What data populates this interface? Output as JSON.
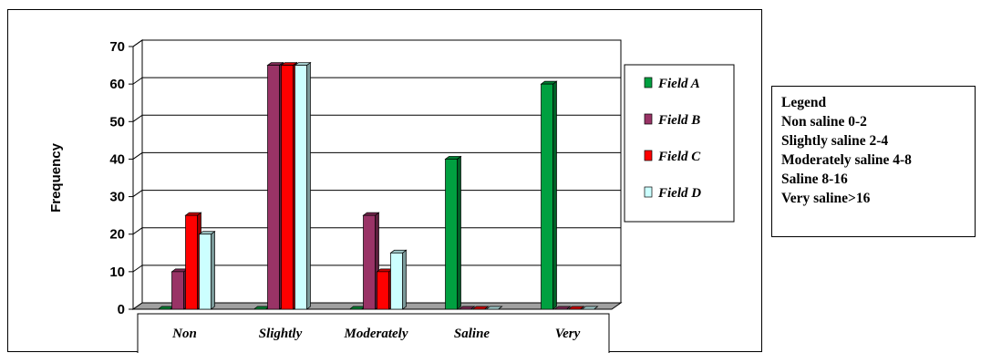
{
  "chart_data": {
    "type": "bar",
    "title": "",
    "xlabel": "",
    "ylabel": "Frequency",
    "ylim": [
      0,
      70
    ],
    "yticks": [
      0,
      10,
      20,
      30,
      40,
      50,
      60,
      70
    ],
    "grid": true,
    "categories": [
      "Non",
      "Slightly",
      "Moderately",
      "Saline",
      "Very"
    ],
    "legend_position": "right",
    "series": [
      {
        "name": "Field A",
        "color": "#00a040",
        "values": [
          0,
          0,
          0,
          40,
          60
        ]
      },
      {
        "name": "Field B",
        "color": "#993366",
        "values": [
          10,
          65,
          25,
          0,
          0
        ]
      },
      {
        "name": "Field C",
        "color": "#ff0000",
        "values": [
          25,
          65,
          10,
          0,
          0
        ]
      },
      {
        "name": "Field D",
        "color": "#ccffff",
        "values": [
          20,
          65,
          15,
          0,
          0
        ]
      }
    ]
  },
  "side_legend": {
    "title": "Legend",
    "lines": [
      "Non saline 0-2",
      "Slightly saline 2-4",
      "Moderately saline 4-8",
      "Saline 8-16",
      "Very saline>16"
    ]
  }
}
